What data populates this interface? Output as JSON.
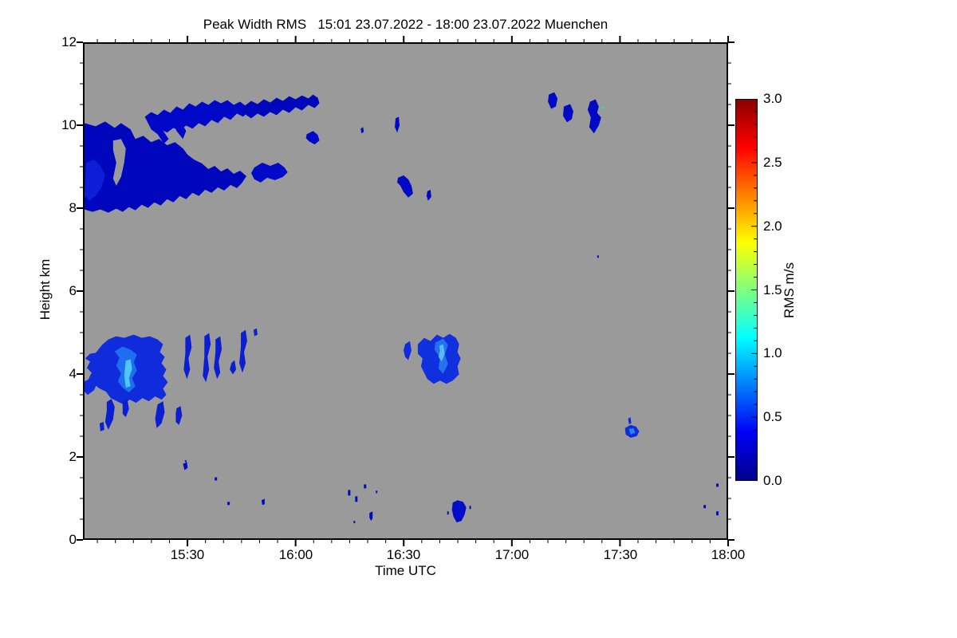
{
  "figure": {
    "title": "Peak Width RMS   15:01 23.07.2022 - 18:00 23.07.2022 Muenchen",
    "background_color": "#FFFFFF",
    "plot_background_color": "#9A9A9A"
  },
  "chart_data": {
    "type": "heatmap",
    "title": "Peak Width RMS   15:01 23.07.2022 - 18:00 23.07.2022 Muenchen",
    "xlabel": "Time UTC",
    "ylabel": "Height km",
    "x_range": [
      "15:01",
      "18:00"
    ],
    "x_tick_labels": [
      "15:30",
      "16:00",
      "16:30",
      "17:00",
      "17:30",
      "18:00"
    ],
    "x_minor_tick_step_minutes": 5,
    "y_range_km": [
      0,
      12
    ],
    "y_tick_labels": [
      "0",
      "2",
      "4",
      "6",
      "8",
      "10",
      "12"
    ],
    "y_minor_tick_step_km": 0.5,
    "grid": false,
    "no_signal_color": "#9A9A9A",
    "colorbar": {
      "label": "RMS m/s",
      "range": [
        0.0,
        3.0
      ],
      "tick_labels": [
        "0.0",
        "0.5",
        "1.0",
        "1.5",
        "2.0",
        "2.5",
        "3.0"
      ],
      "minor_tick_step": 0.1,
      "colormap": "jet",
      "color_stops": [
        "#00008B",
        "#0000F5",
        "#00FFFF",
        "#FFFF00",
        "#FF0000",
        "#8B0000"
      ]
    },
    "regions": [
      {
        "label": "upper-left cloud deck",
        "time": "15:01-15:55",
        "height_km": [
          7.9,
          10.7
        ],
        "rms_ms": [
          0.0,
          0.25
        ]
      },
      {
        "label": "band near 10.4 km",
        "time": "15:42-16:05",
        "height_km": [
          10.1,
          10.6
        ],
        "rms_ms": [
          0.0,
          0.2
        ]
      },
      {
        "label": "detached streak 8.6 km",
        "time": "15:48-15:57",
        "height_km": [
          8.5,
          8.9
        ],
        "rms_ms": [
          0.0,
          0.2
        ]
      },
      {
        "label": "thin sliver 10 km",
        "time": "16:27-16:29",
        "height_km": [
          9.8,
          10.2
        ],
        "rms_ms": [
          0.0,
          0.2
        ]
      },
      {
        "label": "small patch 8.5 km",
        "time": "16:27-16:33",
        "height_km": [
          8.2,
          8.9
        ],
        "rms_ms": [
          0.0,
          0.2
        ]
      },
      {
        "label": "patches 10-10.7 km upper right",
        "time": "17:09-17:25",
        "height_km": [
          9.8,
          10.7
        ],
        "rms_ms": [
          0.0,
          0.3
        ]
      },
      {
        "label": "mid-level cluster with bright core",
        "time": "15:03-15:50",
        "height_km": [
          3.3,
          5.0
        ],
        "rms_ms": [
          0.1,
          1.0
        ]
      },
      {
        "label": "cell 4-5 km",
        "time": "16:29-16:45",
        "height_km": [
          3.8,
          4.9
        ],
        "rms_ms": [
          0.1,
          0.9
        ]
      },
      {
        "label": "patch 2.6 km",
        "time": "17:30-17:35",
        "height_km": [
          2.4,
          2.8
        ],
        "rms_ms": [
          0.1,
          0.7
        ]
      },
      {
        "label": "speck 1.8 km",
        "time": "15:28",
        "height_km": [
          1.7,
          1.9
        ],
        "rms_ms": [
          0.0,
          0.3
        ]
      },
      {
        "label": "boundary-layer specks",
        "time": "16:10-16:25",
        "height_km": [
          0.4,
          1.3
        ],
        "rms_ms": [
          0.0,
          0.3
        ]
      },
      {
        "label": "small cell 0.7 km",
        "time": "16:43-16:48",
        "height_km": [
          0.4,
          0.95
        ],
        "rms_ms": [
          0.0,
          0.4
        ]
      },
      {
        "label": "dot 6.9 km",
        "time": "17:23",
        "height_km": [
          6.8,
          6.9
        ],
        "rms_ms": [
          0.0,
          0.2
        ]
      },
      {
        "label": "specks far right low level",
        "time": "17:52-17:59",
        "height_km": [
          0.55,
          1.35
        ],
        "rms_ms": [
          0.0,
          0.3
        ]
      }
    ]
  }
}
